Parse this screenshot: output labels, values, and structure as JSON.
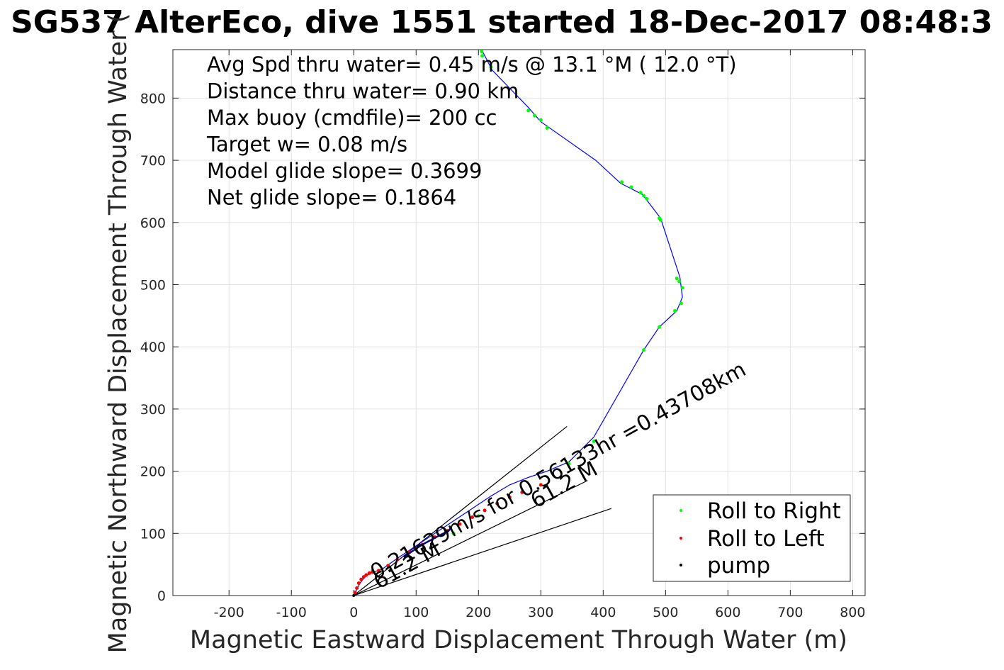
{
  "chart_data": {
    "type": "line",
    "title": "SG537 AlterEco, dive 1551 started 18-Dec-2017 08:48:3",
    "xlabel": "Magnetic Eastward Displacement Through Water (m)",
    "ylabel": "Magnetic Northward Displacement Through Water (",
    "xlim": [
      -290,
      820
    ],
    "ylim": [
      0,
      878
    ],
    "xticks": [
      -200,
      -100,
      0,
      100,
      200,
      300,
      400,
      500,
      600,
      700,
      800
    ],
    "yticks": [
      0,
      100,
      200,
      300,
      400,
      500,
      600,
      700,
      800
    ],
    "grid": true,
    "annotations": [
      "Avg Spd thru water=  0.45 m/s @  13.1 °M ( 12.0 °T)",
      "Distance thru water=  0.90 km",
      "Max buoy (cmdfile)= 200 cc",
      "Target w= 0.08 m/s",
      "Model glide slope= 0.3699",
      "Net glide slope= 0.1864"
    ],
    "rotated_labels": [
      {
        "text": "0.21629m/s for 0.56133hr =0.43708km",
        "x": 35,
        "y": 25
      },
      {
        "text": "61.2 M",
        "x": 40,
        "y": 10
      },
      {
        "text": "61.2 M",
        "x": 292,
        "y": 140
      }
    ],
    "legend": {
      "placement": "bottom-right",
      "entries": [
        "Roll to Right",
        "Roll to Left",
        "pump"
      ]
    },
    "series": [
      {
        "name": "track",
        "color": "#0000ff",
        "x": [
          0,
          5,
          10,
          18,
          28,
          45,
          70,
          100,
          130,
          160,
          190,
          220,
          250,
          280,
          310,
          345,
          385,
          465,
          490,
          518,
          527,
          523,
          492,
          463,
          428,
          388,
          300,
          280,
          222,
          205
        ],
        "y": [
          0,
          10,
          20,
          30,
          37,
          42,
          60,
          80,
          100,
          120,
          140,
          160,
          178,
          190,
          200,
          215,
          255,
          395,
          432,
          458,
          480,
          512,
          607,
          645,
          663,
          700,
          762,
          785,
          845,
          878
        ]
      },
      {
        "name": "Roll to Right",
        "color": "#00ff00",
        "x": [
          205,
          206,
          220,
          280,
          290,
          300,
          310,
          430,
          445,
          460,
          465,
          470,
          490,
          492,
          518,
          522,
          527,
          525,
          515,
          490,
          465,
          385,
          345,
          200,
          160,
          30
        ],
        "y": [
          875,
          868,
          850,
          780,
          772,
          765,
          752,
          665,
          657,
          648,
          643,
          638,
          607,
          604,
          510,
          505,
          495,
          470,
          458,
          432,
          395,
          248,
          212,
          128,
          100,
          40
        ]
      },
      {
        "name": "Roll to Left",
        "color": "#ff0000",
        "x": [
          2,
          5,
          8,
          12,
          16,
          20,
          25,
          30,
          40,
          55,
          70,
          90,
          110,
          130,
          150,
          170,
          190,
          210,
          230,
          250,
          270,
          300
        ],
        "y": [
          5,
          12,
          20,
          26,
          30,
          33,
          36,
          38,
          40,
          48,
          58,
          70,
          82,
          94,
          104,
          115,
          126,
          137,
          148,
          158,
          166,
          178
        ]
      },
      {
        "name": "pump",
        "color": "#000000",
        "x": [
          0
        ],
        "y": [
          0
        ]
      },
      {
        "name": "dark track",
        "color": "#000080",
        "x": [
          80,
          95,
          110,
          125,
          140,
          152,
          155,
          148
        ],
        "y": [
          62,
          72,
          82,
          90,
          98,
          104,
          108,
          100
        ]
      }
    ],
    "reference_lines": [
      {
        "x": [
          0,
          342
        ],
        "y": [
          0,
          272
        ]
      },
      {
        "x": [
          0,
          413
        ],
        "y": [
          0,
          140
        ]
      },
      {
        "x": [
          0,
          375
        ],
        "y": [
          0,
          185
        ]
      }
    ],
    "legend_colors": [
      "#00ff00",
      "#ff0000",
      "#000000"
    ]
  }
}
